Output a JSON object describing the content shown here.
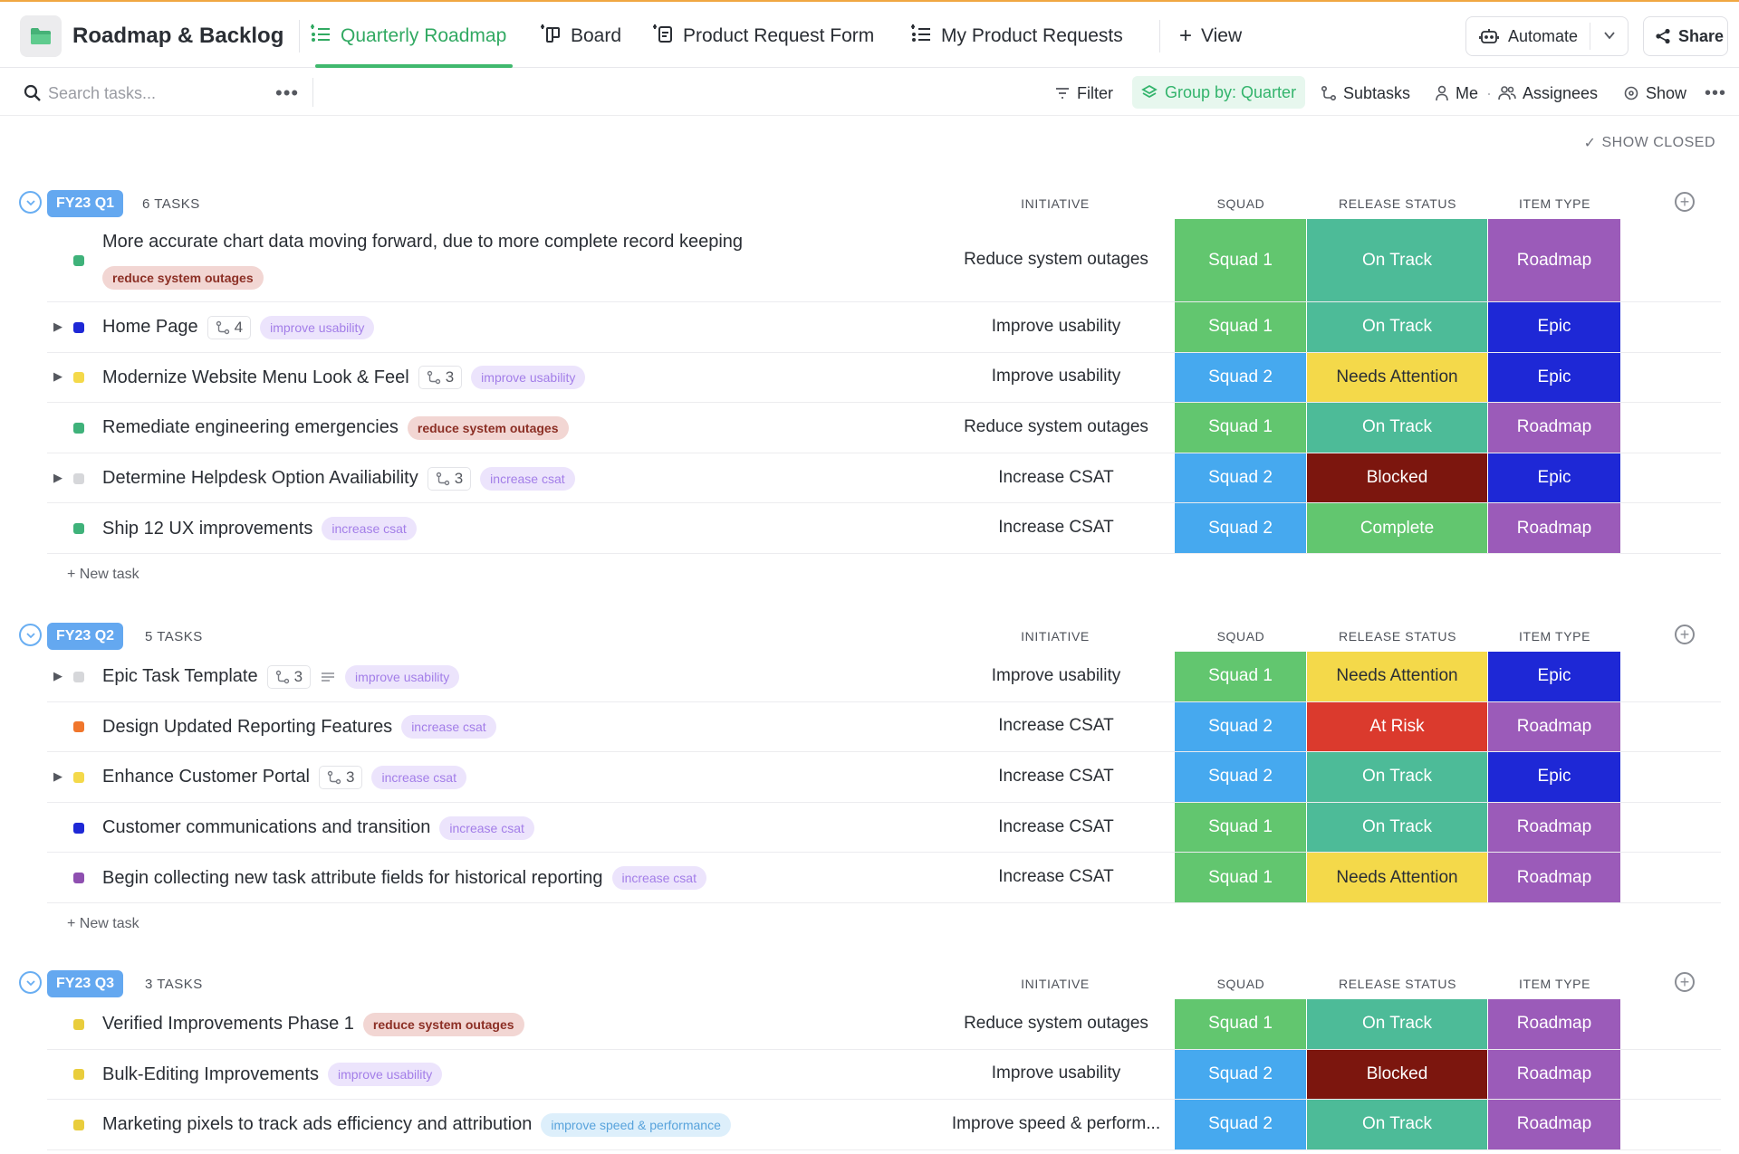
{
  "header": {
    "space_title": "Roadmap & Backlog",
    "tabs": [
      {
        "label": "Quarterly Roadmap",
        "icon": "list-icon",
        "active": true
      },
      {
        "label": "Board",
        "icon": "board-icon",
        "active": false
      },
      {
        "label": "Product Request Form",
        "icon": "form-icon",
        "active": false
      },
      {
        "label": "My Product Requests",
        "icon": "list-icon",
        "active": false
      }
    ],
    "add_view_label": "View",
    "automate_label": "Automate",
    "share_label": "Share"
  },
  "toolbar": {
    "search_placeholder": "Search tasks...",
    "filter_label": "Filter",
    "group_by_label": "Group by: Quarter",
    "subtasks_label": "Subtasks",
    "me_label": "Me",
    "assignees_label": "Assignees",
    "show_label": "Show"
  },
  "show_closed_label": "SHOW CLOSED",
  "columns": {
    "initiative": "INITIATIVE",
    "squad": "SQUAD",
    "release_status": "RELEASE STATUS",
    "item_type": "ITEM TYPE"
  },
  "new_task_label": "+ New task",
  "colors": {
    "squad_1": "#62c66f",
    "squad_2": "#46a9ef",
    "on_track": "#4dbb98",
    "needs_attention": "#f4d94a",
    "blocked": "#7c160e",
    "complete": "#62c66f",
    "at_risk": "#db3a2d",
    "roadmap": "#9b5bb9",
    "epic": "#1e28d6"
  },
  "groups": [
    {
      "label": "FY23 Q1",
      "count": "6 TASKS",
      "tasks": [
        {
          "name": "More accurate chart data moving forward, due to more complete record keeping",
          "status_color": "#3fb27a",
          "expandable": false,
          "subtasks": "",
          "tag": "reduce system outages",
          "tag_style": "red",
          "tag_below": true,
          "initiative": "Reduce system outages",
          "squad": "Squad 1",
          "release_status": "On Track",
          "item_type": "Roadmap"
        },
        {
          "name": "Home Page",
          "status_color": "#1e28d6",
          "expandable": true,
          "subtasks": "4",
          "tag": "improve usability",
          "tag_style": "purple",
          "initiative": "Improve usability",
          "squad": "Squad 1",
          "release_status": "On Track",
          "item_type": "Epic"
        },
        {
          "name": "Modernize Website Menu Look & Feel",
          "status_color": "#f4d94a",
          "expandable": true,
          "subtasks": "3",
          "tag": "improve usability",
          "tag_style": "purple",
          "initiative": "Improve usability",
          "squad": "Squad 2",
          "release_status": "Needs Attention",
          "item_type": "Epic"
        },
        {
          "name": "Remediate engineering emergencies",
          "status_color": "#3fb27a",
          "expandable": false,
          "subtasks": "",
          "tag": "reduce system outages",
          "tag_style": "red",
          "initiative": "Reduce system outages",
          "squad": "Squad 1",
          "release_status": "On Track",
          "item_type": "Roadmap"
        },
        {
          "name": "Determine Helpdesk Option Availiability",
          "status_color": "#d6d7da",
          "expandable": true,
          "subtasks": "3",
          "tag": "increase csat",
          "tag_style": "purple",
          "initiative": "Increase CSAT",
          "squad": "Squad 2",
          "release_status": "Blocked",
          "item_type": "Epic"
        },
        {
          "name": "Ship 12 UX improvements",
          "status_color": "#3fb27a",
          "expandable": false,
          "subtasks": "",
          "tag": "increase csat",
          "tag_style": "purple",
          "initiative": "Increase CSAT",
          "squad": "Squad 2",
          "release_status": "Complete",
          "item_type": "Roadmap"
        }
      ]
    },
    {
      "label": "FY23 Q2",
      "count": "5 TASKS",
      "tasks": [
        {
          "name": "Epic Task Template",
          "status_color": "#d6d7da",
          "expandable": true,
          "subtasks": "3",
          "has_description": true,
          "tag": "improve usability",
          "tag_style": "purple",
          "initiative": "Improve usability",
          "squad": "Squad 1",
          "release_status": "Needs Attention",
          "item_type": "Epic"
        },
        {
          "name": "Design Updated Reporting Features",
          "status_color": "#f0762c",
          "expandable": false,
          "subtasks": "",
          "tag": "increase csat",
          "tag_style": "purple",
          "initiative": "Increase CSAT",
          "squad": "Squad 2",
          "release_status": "At Risk",
          "item_type": "Roadmap"
        },
        {
          "name": "Enhance Customer Portal",
          "status_color": "#f4d94a",
          "expandable": true,
          "subtasks": "3",
          "tag": "increase csat",
          "tag_style": "purple",
          "initiative": "Increase CSAT",
          "squad": "Squad 2",
          "release_status": "On Track",
          "item_type": "Epic"
        },
        {
          "name": "Customer communications and transition",
          "status_color": "#1e28d6",
          "expandable": false,
          "subtasks": "",
          "tag": "increase csat",
          "tag_style": "purple",
          "initiative": "Increase CSAT",
          "squad": "Squad 1",
          "release_status": "On Track",
          "item_type": "Roadmap"
        },
        {
          "name": "Begin collecting new task attribute fields for historical reporting",
          "status_color": "#8e4fb0",
          "expandable": false,
          "subtasks": "",
          "tag": "increase csat",
          "tag_style": "purple",
          "initiative": "Increase CSAT",
          "squad": "Squad 1",
          "release_status": "Needs Attention",
          "item_type": "Roadmap"
        }
      ]
    },
    {
      "label": "FY23 Q3",
      "count": "3 TASKS",
      "tasks": [
        {
          "name": "Verified Improvements Phase 1",
          "status_color": "#e9cd3c",
          "expandable": false,
          "subtasks": "",
          "tag": "reduce system outages",
          "tag_style": "red",
          "initiative": "Reduce system outages",
          "squad": "Squad 1",
          "release_status": "On Track",
          "item_type": "Roadmap"
        },
        {
          "name": "Bulk-Editing Improvements",
          "status_color": "#e9cd3c",
          "expandable": false,
          "subtasks": "",
          "tag": "improve usability",
          "tag_style": "purple",
          "initiative": "Improve usability",
          "squad": "Squad 2",
          "release_status": "Blocked",
          "item_type": "Roadmap"
        },
        {
          "name": "Marketing pixels to track ads efficiency and attribution",
          "status_color": "#e9cd3c",
          "expandable": false,
          "subtasks": "",
          "tag": "improve speed & performance",
          "tag_style": "blue",
          "initiative": "Improve speed & perform...",
          "squad": "Squad 2",
          "release_status": "On Track",
          "item_type": "Roadmap"
        }
      ]
    }
  ]
}
